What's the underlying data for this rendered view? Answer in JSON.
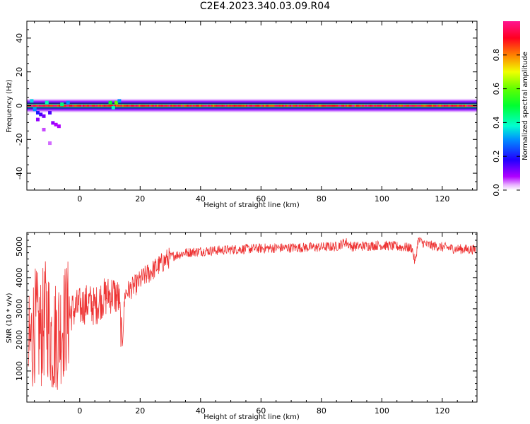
{
  "title": "C2E4.2023.340.03.09.R04",
  "colors": {
    "snr_line": "#ee3333",
    "frame": "#000000",
    "background": "#ffffff"
  },
  "chart_data": [
    {
      "type": "heatmap",
      "title": "C2E4.2023.340.03.09.R04",
      "xlabel": "Height of straight line (km)",
      "ylabel": "Frequency (Hz)",
      "xlim": [
        -17.5,
        131.5
      ],
      "ylim": [
        -50,
        50
      ],
      "x_ticks": [
        0,
        20,
        40,
        60,
        80,
        100,
        120
      ],
      "y_ticks": [
        -40,
        -20,
        0,
        20,
        40
      ],
      "colorbar": {
        "label": "Normalized spectral amplitude",
        "range": [
          0.0,
          1.0
        ],
        "ticks": [
          0.0,
          0.2,
          0.4,
          0.6,
          0.8
        ],
        "colormap": "gist_rainbow (magenta-blue-cyan-green-yellow-red-pink)"
      },
      "description_of_signal": "strong narrow band centered at 0 Hz along the full height range; broader scatter between -17 and 14 km",
      "band": {
        "center_hz": 0,
        "core_halfwidth_hz": 1,
        "halo_halfwidth_hz": 3
      },
      "scatter_points": [
        {
          "x": -16,
          "y": 3,
          "v": 0.35
        },
        {
          "x": -15,
          "y": -2,
          "v": 0.3
        },
        {
          "x": -14,
          "y": -4,
          "v": 0.2
        },
        {
          "x": -13,
          "y": -5,
          "v": 0.15
        },
        {
          "x": -12,
          "y": -6,
          "v": 0.12
        },
        {
          "x": -11,
          "y": 2,
          "v": 0.4
        },
        {
          "x": -10,
          "y": -4,
          "v": 0.15
        },
        {
          "x": -9,
          "y": -10,
          "v": 0.1
        },
        {
          "x": -8,
          "y": -11,
          "v": 0.08
        },
        {
          "x": -7,
          "y": -12,
          "v": 0.08
        },
        {
          "x": -10,
          "y": -22,
          "v": 0.05
        },
        {
          "x": -12,
          "y": -14,
          "v": 0.06
        },
        {
          "x": -14,
          "y": -8,
          "v": 0.1
        },
        {
          "x": -6,
          "y": 1,
          "v": 0.45
        },
        {
          "x": -4,
          "y": 2,
          "v": 0.3
        },
        {
          "x": 10,
          "y": 2,
          "v": 0.5
        },
        {
          "x": 12,
          "y": 2,
          "v": 0.6
        },
        {
          "x": 13,
          "y": 3,
          "v": 0.3
        },
        {
          "x": 11,
          "y": -1,
          "v": 0.4
        }
      ]
    },
    {
      "type": "line",
      "xlabel": "Height of straight line (km)",
      "ylabel": "SNR (10 * v/v)",
      "xlim": [
        -17.5,
        131.5
      ],
      "ylim": [
        0,
        5450
      ],
      "x_ticks": [
        0,
        20,
        40,
        60,
        80,
        100,
        120
      ],
      "y_ticks": [
        1000,
        2000,
        3000,
        4000,
        5000
      ],
      "series": [
        {
          "x": [
            -17,
            -15,
            -13,
            -11,
            -9,
            -7,
            -5,
            -3,
            -1,
            1,
            3,
            5,
            7,
            9,
            11,
            13,
            14,
            15,
            17,
            19,
            21,
            23,
            25,
            27,
            29,
            31,
            35,
            40,
            45,
            50,
            55,
            60,
            65,
            70,
            75,
            80,
            85,
            88,
            90,
            95,
            100,
            105,
            110,
            111,
            112,
            113,
            115,
            120,
            125,
            131
          ],
          "values": [
            1500,
            2500,
            2200,
            2800,
            2000,
            2300,
            2600,
            2900,
            3000,
            3100,
            3200,
            3050,
            3300,
            3400,
            3500,
            3300,
            1800,
            3500,
            3650,
            3800,
            4000,
            4150,
            4300,
            4450,
            4600,
            4700,
            4800,
            4850,
            4870,
            4900,
            4920,
            4940,
            4950,
            4960,
            4970,
            4980,
            5000,
            5150,
            5000,
            5020,
            5040,
            5000,
            4950,
            4450,
            5200,
            5150,
            5050,
            4980,
            4920,
            4900
          ]
        }
      ]
    }
  ]
}
